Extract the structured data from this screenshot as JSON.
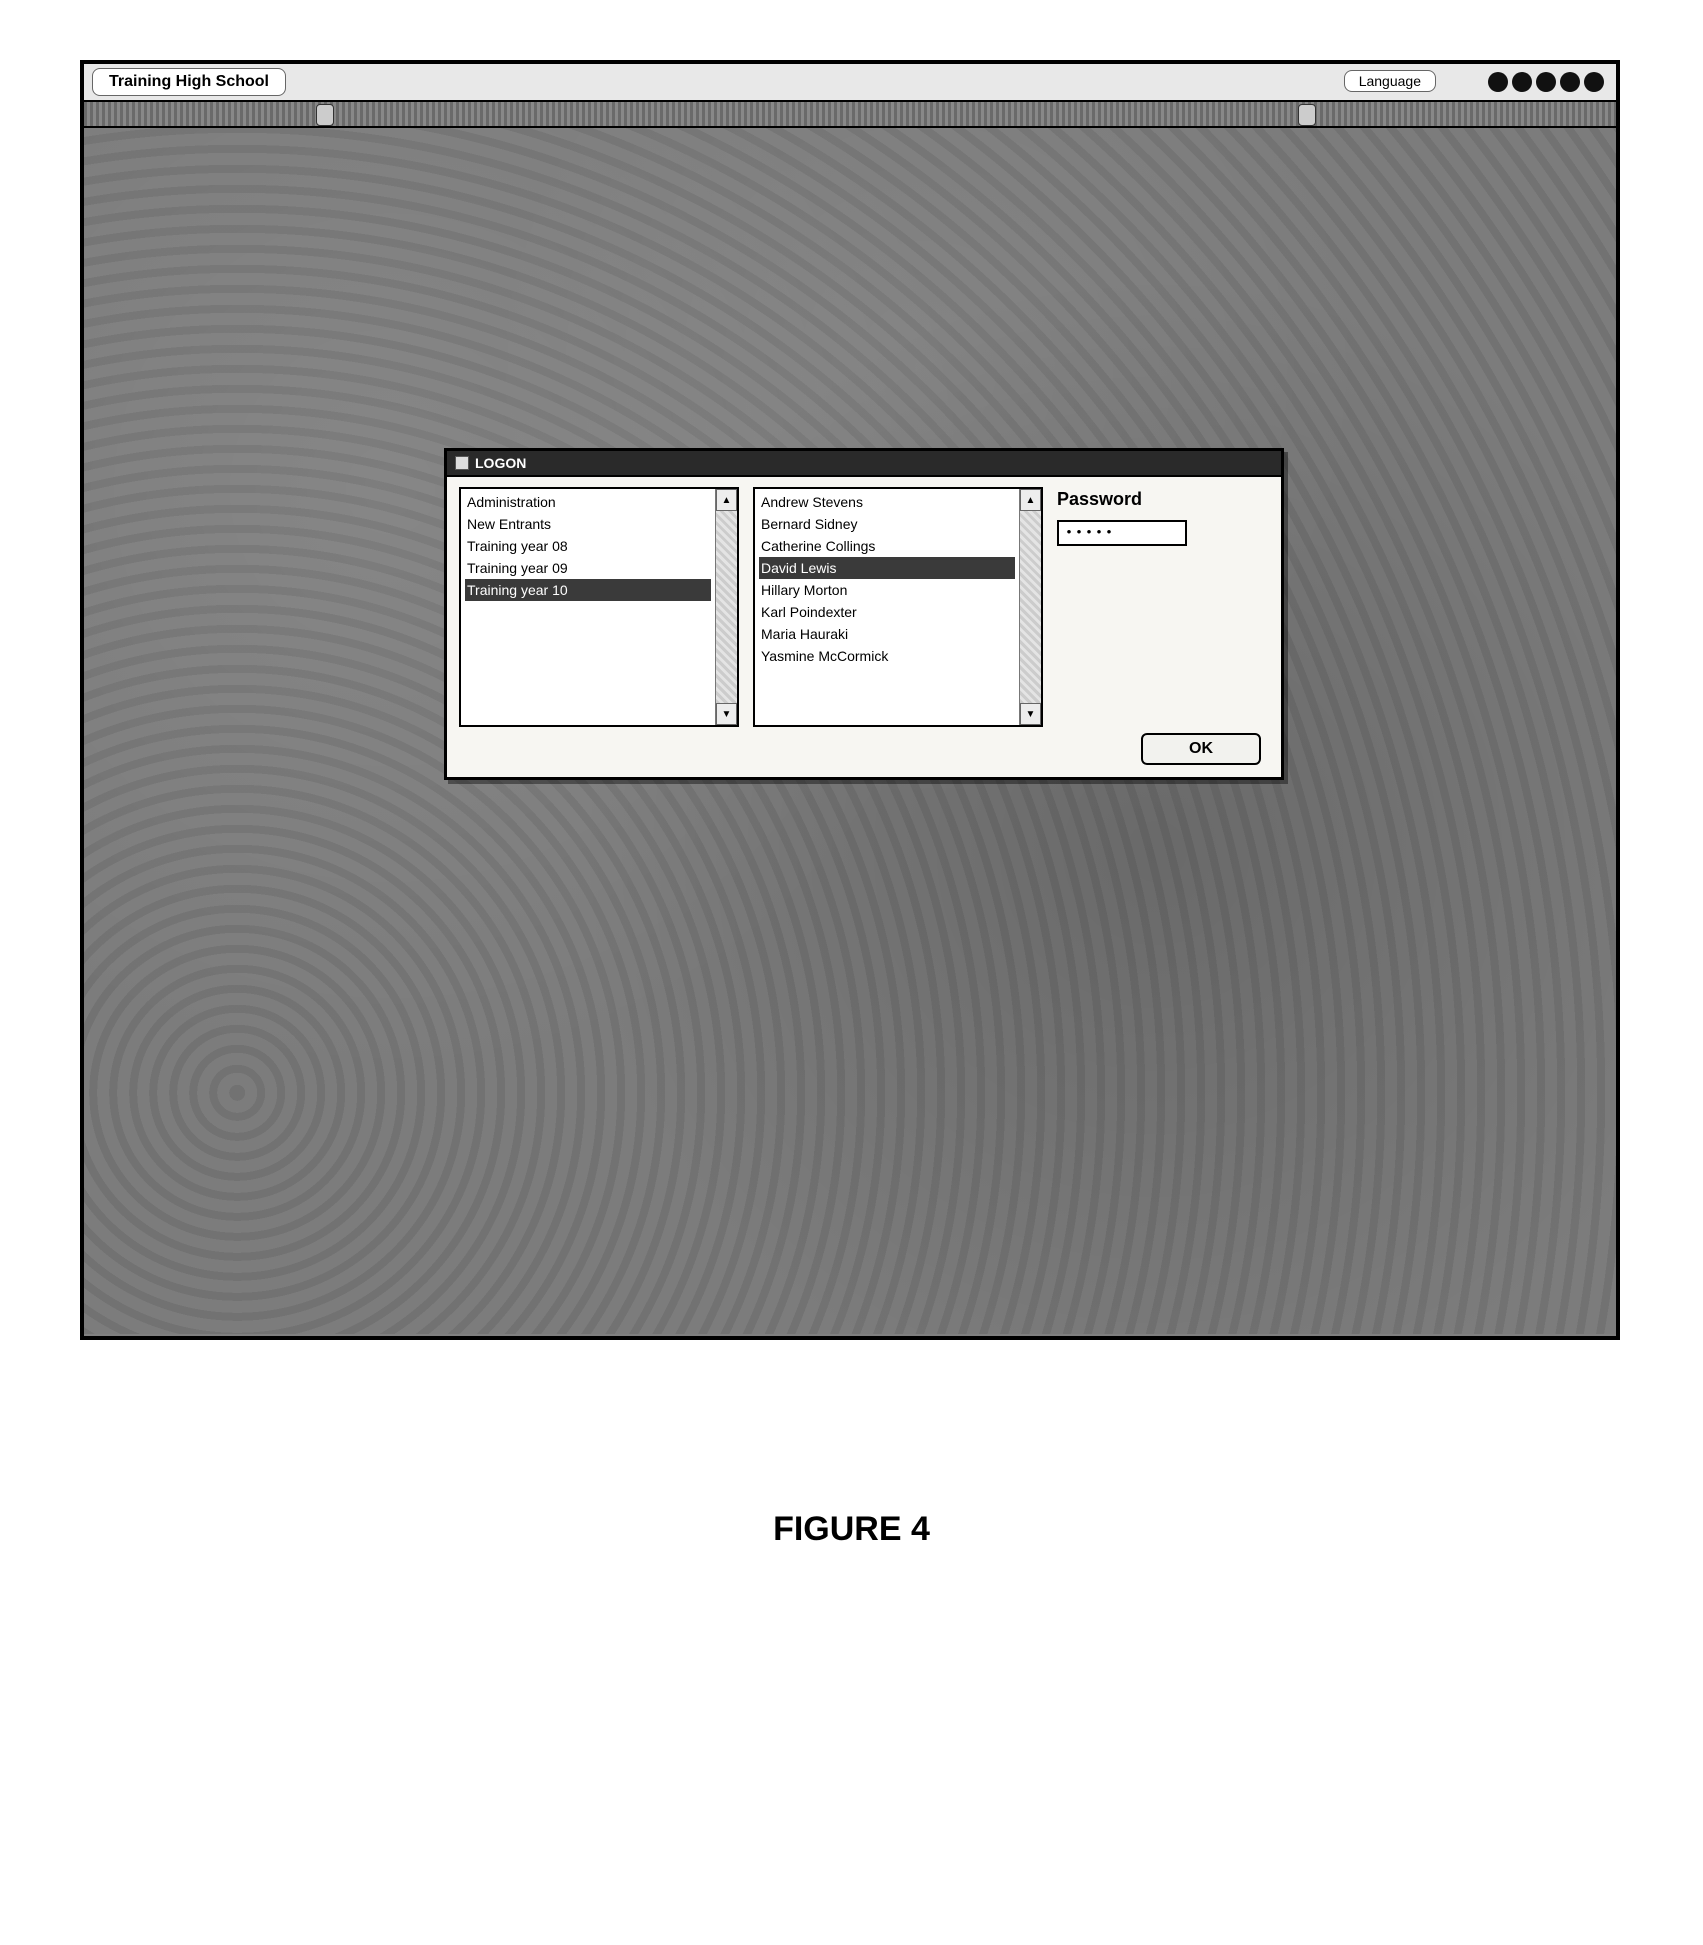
{
  "frame": {
    "title": "Training High School",
    "language_label": "Language",
    "dot_count": 5
  },
  "dialog": {
    "title": "LOGON",
    "groups": {
      "items": [
        "Administration",
        "New Entrants",
        "Training year 08",
        "Training year 09",
        "Training year 10"
      ],
      "selected_index": 4
    },
    "names": {
      "items": [
        "Andrew Stevens",
        "Bernard Sidney",
        "Catherine Collings",
        "David Lewis",
        "Hillary Morton",
        "Karl Poindexter",
        "Maria Hauraki",
        "Yasmine McCormick"
      ],
      "selected_index": 3
    },
    "password_label": "Password",
    "password_value": "•••••",
    "ok_label": "OK"
  },
  "caption": "FIGURE 4",
  "colors": {
    "desktop_bg": "#7c7c7c",
    "dialog_bg": "#f7f6f2",
    "selection_bg": "#3a3a3a",
    "selection_fg": "#ffffff"
  }
}
